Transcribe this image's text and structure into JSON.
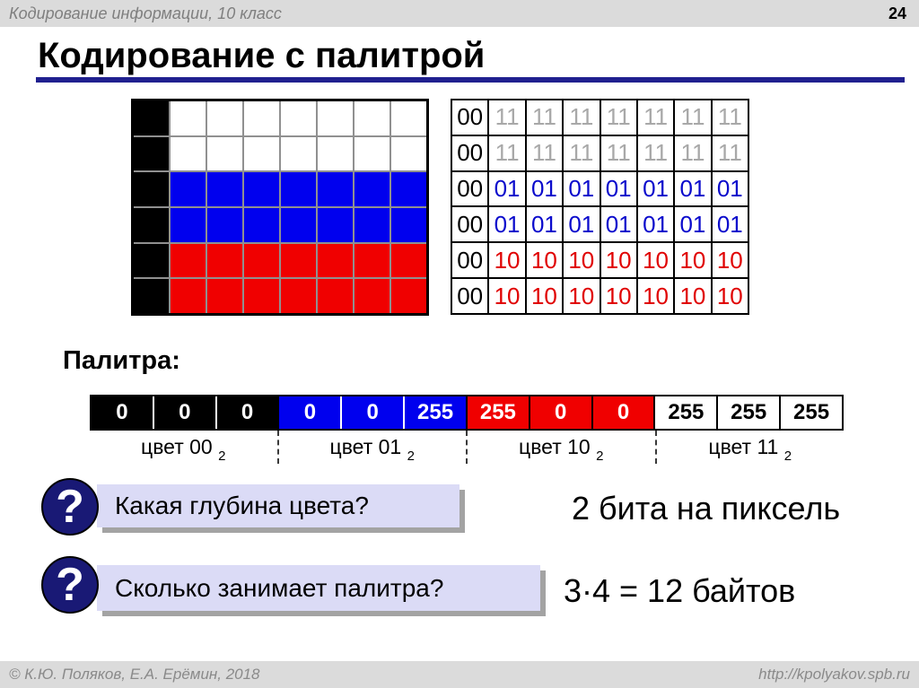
{
  "header": {
    "breadcrumb": "Кодирование информации, 10 класс",
    "page_number": "24"
  },
  "title": "Кодирование с палитрой",
  "flag": {
    "palette": {
      "black": "#000000",
      "white": "#ffffff",
      "blue": "#0000ee",
      "red": "#f00000"
    },
    "cells": [
      [
        "black",
        "white",
        "white",
        "white",
        "white",
        "white",
        "white",
        "white"
      ],
      [
        "black",
        "white",
        "white",
        "white",
        "white",
        "white",
        "white",
        "white"
      ],
      [
        "black",
        "blue",
        "blue",
        "blue",
        "blue",
        "blue",
        "blue",
        "blue"
      ],
      [
        "black",
        "blue",
        "blue",
        "blue",
        "blue",
        "blue",
        "blue",
        "blue"
      ],
      [
        "black",
        "red",
        "red",
        "red",
        "red",
        "red",
        "red",
        "red"
      ],
      [
        "black",
        "red",
        "red",
        "red",
        "red",
        "red",
        "red",
        "red"
      ]
    ]
  },
  "code_table": {
    "value_colors": {
      "00": "#000000",
      "11": "#a8a8a8",
      "01": "#0a0acc",
      "10": "#e00000"
    },
    "rows": [
      [
        "00",
        "11",
        "11",
        "11",
        "11",
        "11",
        "11",
        "11"
      ],
      [
        "00",
        "11",
        "11",
        "11",
        "11",
        "11",
        "11",
        "11"
      ],
      [
        "00",
        "01",
        "01",
        "01",
        "01",
        "01",
        "01",
        "01"
      ],
      [
        "00",
        "01",
        "01",
        "01",
        "01",
        "01",
        "01",
        "01"
      ],
      [
        "00",
        "10",
        "10",
        "10",
        "10",
        "10",
        "10",
        "10"
      ],
      [
        "00",
        "10",
        "10",
        "10",
        "10",
        "10",
        "10",
        "10"
      ]
    ]
  },
  "palette": {
    "label": "Палитра:",
    "groups": [
      {
        "caption": "цвет 00",
        "caption_sub": "2",
        "rgb": [
          "0",
          "0",
          "0"
        ],
        "color": "#000000",
        "text_color": "#ffffff",
        "separator": "#ffffff"
      },
      {
        "caption": "цвет 01",
        "caption_sub": "2",
        "rgb": [
          "0",
          "0",
          "255"
        ],
        "color": "#0000ee",
        "text_color": "#ffffff",
        "separator": "#ffffff"
      },
      {
        "caption": "цвет 10",
        "caption_sub": "2",
        "rgb": [
          "255",
          "0",
          "0"
        ],
        "color": "#f00000",
        "text_color": "#ffffff",
        "separator": "#000000"
      },
      {
        "caption": "цвет 11",
        "caption_sub": "2",
        "rgb": [
          "255",
          "255",
          "255"
        ],
        "color": "#ffffff",
        "text_color": "#000000",
        "separator": "#000000"
      }
    ]
  },
  "questions": [
    {
      "icon": "question-mark-icon",
      "mark": "?",
      "text": "Какая глубина цвета?",
      "answer": "2 бита на пиксель"
    },
    {
      "icon": "question-mark-icon",
      "mark": "?",
      "text": "Сколько занимает палитра?",
      "answer": "3·4 = 12 байтов"
    }
  ],
  "footer": {
    "copyright": "© К.Ю. Поляков, Е.А. Ерёмин, 2018",
    "url": "http://kpolyakov.spb.ru"
  },
  "colors": {
    "accent_underline": "#20208f",
    "bar_background": "#dbdbdb",
    "question_box": "#dbdbf6",
    "question_circle": "#191975"
  }
}
